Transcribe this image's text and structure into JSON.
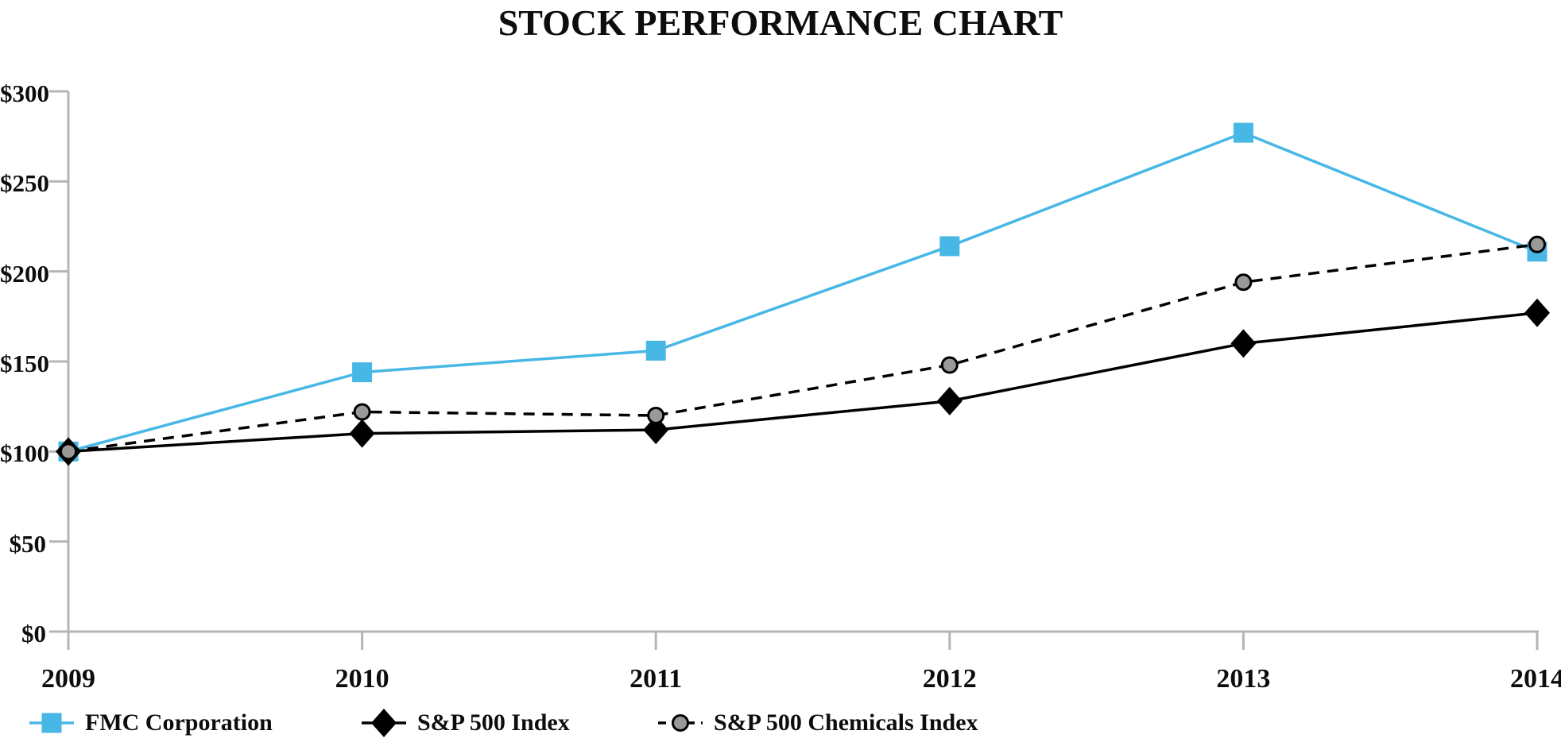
{
  "chart_data": {
    "type": "line",
    "title": "STOCK PERFORMANCE CHART",
    "xlabel": "",
    "ylabel": "",
    "x": [
      2009,
      2010,
      2011,
      2012,
      2013,
      2014
    ],
    "x_tick_labels": [
      "2009",
      "2010",
      "2011",
      "2012",
      "2013",
      "2014"
    ],
    "y_ticks": [
      0,
      50,
      100,
      150,
      200,
      250,
      300
    ],
    "y_tick_labels": [
      "$0",
      "$50",
      "$100",
      "$150",
      "$200",
      "$250",
      "$300"
    ],
    "ylim": [
      0,
      300
    ],
    "grid": false,
    "legend_position": "bottom",
    "series": [
      {
        "name": "FMC Corporation",
        "color": "#47b7e5",
        "line_style": "solid",
        "marker": "square",
        "marker_fill": "#47b7e5",
        "values": [
          100,
          144,
          156,
          214,
          277,
          211
        ]
      },
      {
        "name": "S&P 500 Index",
        "color": "#000000",
        "line_style": "solid",
        "marker": "diamond",
        "marker_fill": "#000000",
        "values": [
          100,
          110,
          112,
          128,
          160,
          177
        ]
      },
      {
        "name": "S&P 500 Chemicals Index",
        "color": "#000000",
        "line_style": "dashed",
        "marker": "circle",
        "marker_fill": "#999999",
        "values": [
          100,
          122,
          120,
          148,
          194,
          215
        ]
      }
    ]
  },
  "colors": {
    "accent_blue": "#47b7e5",
    "axis_gray": "#b5b5b5",
    "marker_gray": "#999999",
    "text": "#0d0d0d"
  }
}
